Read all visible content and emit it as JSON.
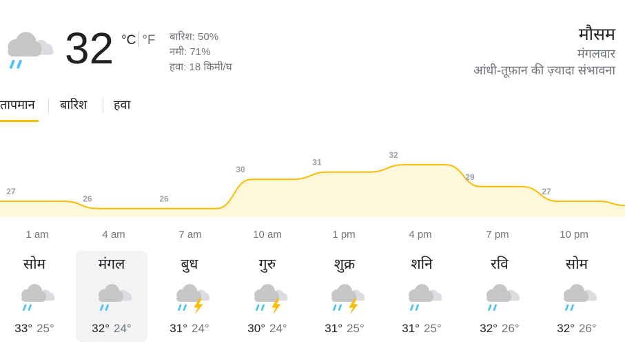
{
  "current": {
    "temperature": "32",
    "unit_c": "°C",
    "unit_f": "°F",
    "icon": "rain-cloud-icon",
    "precipitation": "बारिश: 50%",
    "humidity": "नमी: 71%",
    "wind": "हवा: 18 किमी/घ"
  },
  "header": {
    "title": "मौसम",
    "day": "मंगलवार",
    "condition": "आंधी-तूफ़ान की ज़्यादा संभावना"
  },
  "tabs": [
    {
      "label": "तापमान",
      "selected": true
    },
    {
      "label": "बारिश",
      "selected": false
    },
    {
      "label": "हवा",
      "selected": false
    }
  ],
  "colors": {
    "accent": "#fbbc04",
    "chart_fill": "#fef7d9",
    "rain": "#4fc3f7",
    "cloud": "#dadce0",
    "bolt": "#fbbc04"
  },
  "chart_data": {
    "type": "area",
    "x": [
      "1 am",
      "4 am",
      "7 am",
      "10 am",
      "1 pm",
      "4 pm",
      "7 pm",
      "10 pm"
    ],
    "values": [
      27,
      26,
      26,
      30,
      31,
      32,
      29,
      27
    ],
    "labels": [
      "27",
      "26",
      "26",
      "30",
      "31",
      "32",
      "29",
      "27"
    ]
  },
  "forecast": [
    {
      "day": "सोम",
      "icon": "rain-cloud-icon",
      "high": "33°",
      "low": "25°",
      "selected": false
    },
    {
      "day": "मंगल",
      "icon": "rain-cloud-icon",
      "high": "32°",
      "low": "24°",
      "selected": true
    },
    {
      "day": "बुध",
      "icon": "thunderstorm-icon",
      "high": "31°",
      "low": "24°",
      "selected": false
    },
    {
      "day": "गुरु",
      "icon": "thunderstorm-icon",
      "high": "30°",
      "low": "24°",
      "selected": false
    },
    {
      "day": "शुक्र",
      "icon": "thunderstorm-icon",
      "high": "31°",
      "low": "25°",
      "selected": false
    },
    {
      "day": "शनि",
      "icon": "rain-cloud-icon",
      "high": "31°",
      "low": "25°",
      "selected": false
    },
    {
      "day": "रवि",
      "icon": "rain-cloud-icon",
      "high": "32°",
      "low": "26°",
      "selected": false
    },
    {
      "day": "सोम",
      "icon": "rain-cloud-icon",
      "high": "32°",
      "low": "26°",
      "selected": false
    }
  ]
}
